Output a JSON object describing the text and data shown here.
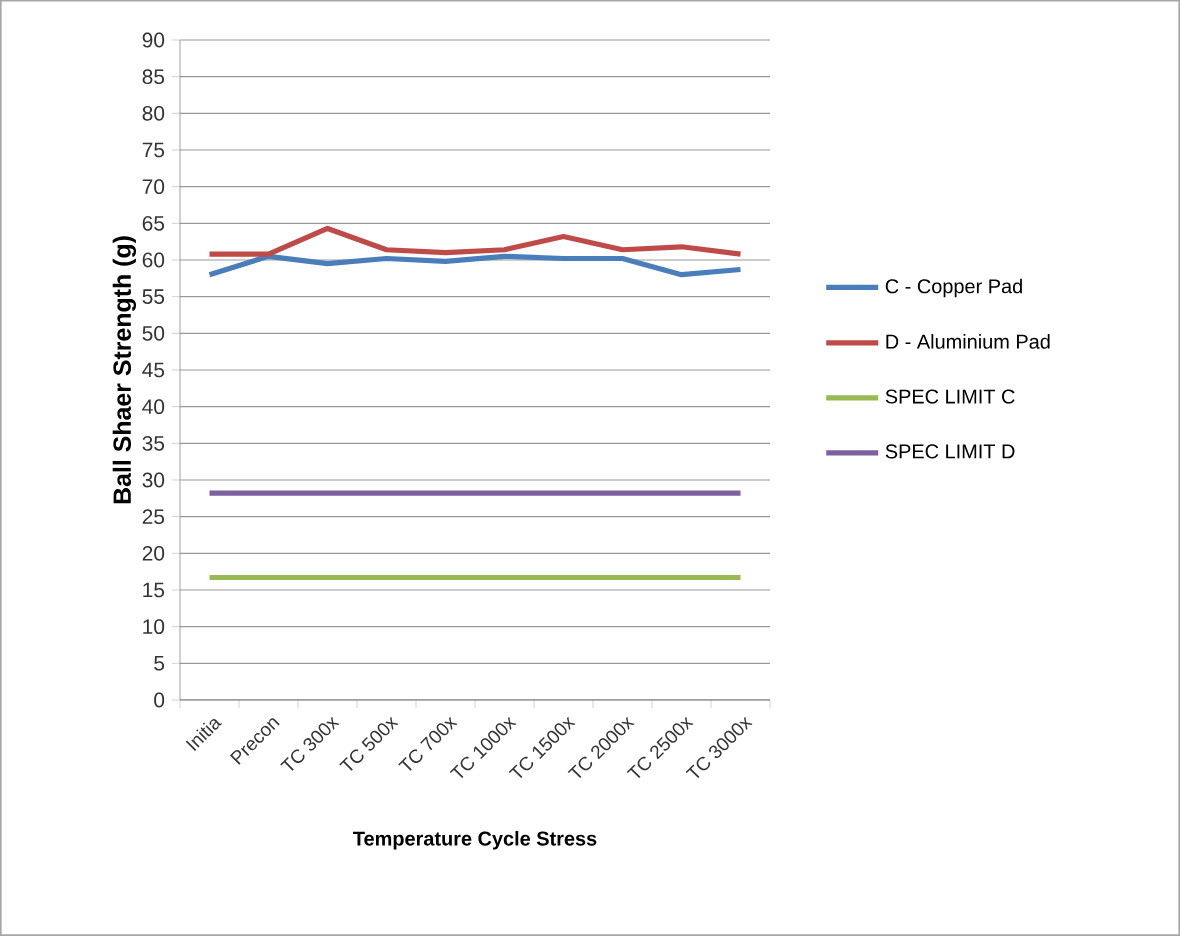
{
  "chart_data": {
    "type": "line",
    "xlabel": "Temperature Cycle Stress",
    "ylabel": "Ball Shaer Strength (g)",
    "categories": [
      "Initia",
      "Precon",
      "TC 300x",
      "TC 500x",
      "TC 700x",
      "TC 1000x",
      "TC 1500x",
      "TC 2000x",
      "TC 2500x",
      "TC 3000x"
    ],
    "series": [
      {
        "name": "C - Copper Pad",
        "color": "#4a7ebb",
        "values": [
          58,
          60.5,
          59.5,
          60.2,
          59.8,
          60.5,
          60.2,
          60.2,
          58,
          58.7
        ]
      },
      {
        "name": "D - Aluminium Pad",
        "color": "#be4b48",
        "values": [
          60.8,
          60.8,
          64.3,
          61.4,
          61,
          61.4,
          63.2,
          61.4,
          61.8,
          60.8
        ]
      },
      {
        "name": "SPEC LIMIT C",
        "color": "#98b954",
        "values": [
          16.7,
          16.7,
          16.7,
          16.7,
          16.7,
          16.7,
          16.7,
          16.7,
          16.7,
          16.7
        ]
      },
      {
        "name": "SPEC LIMIT D",
        "color": "#7d60a0",
        "values": [
          28.2,
          28.2,
          28.2,
          28.2,
          28.2,
          28.2,
          28.2,
          28.2,
          28.2,
          28.2
        ]
      }
    ],
    "ylim": [
      0,
      90
    ],
    "yticks": [
      0,
      5,
      10,
      15,
      20,
      25,
      30,
      35,
      40,
      45,
      50,
      55,
      60,
      65,
      70,
      75,
      80,
      85,
      90
    ],
    "grid": "y",
    "legend": "right",
    "marker": "none",
    "line_style": "solid"
  }
}
